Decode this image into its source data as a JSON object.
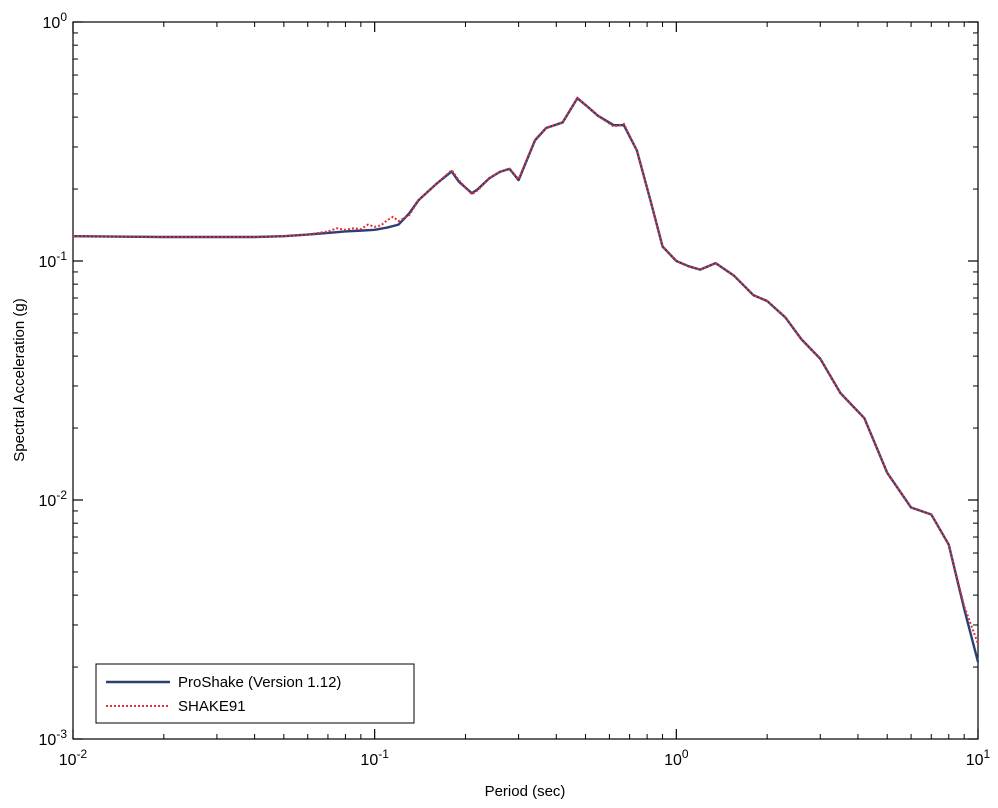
{
  "chart_data": {
    "type": "line",
    "title": "",
    "xlabel": "Period (sec)",
    "ylabel": "Spectral Acceleration (g)",
    "xscale": "log",
    "yscale": "log",
    "xlim": [
      0.01,
      10
    ],
    "ylim": [
      0.001,
      1
    ],
    "grid": false,
    "legend_position": "bottom-left",
    "x_ticks": [
      {
        "base": "10",
        "exp": "-2"
      },
      {
        "base": "10",
        "exp": "-1"
      },
      {
        "base": "10",
        "exp": "0"
      },
      {
        "base": "10",
        "exp": "1"
      }
    ],
    "y_ticks": [
      {
        "base": "10",
        "exp": "-3"
      },
      {
        "base": "10",
        "exp": "-2"
      },
      {
        "base": "10",
        "exp": "-1"
      },
      {
        "base": "10",
        "exp": "0"
      }
    ],
    "series": [
      {
        "name": "ProShake (Version 1.12)",
        "color": "#2b3f73",
        "dash": "solid",
        "x": [
          0.01,
          0.02,
          0.03,
          0.04,
          0.05,
          0.06,
          0.07,
          0.08,
          0.09,
          0.1,
          0.11,
          0.12,
          0.13,
          0.14,
          0.16,
          0.18,
          0.19,
          0.21,
          0.22,
          0.24,
          0.26,
          0.28,
          0.3,
          0.34,
          0.37,
          0.42,
          0.47,
          0.51,
          0.55,
          0.62,
          0.67,
          0.74,
          0.82,
          0.9,
          1.0,
          1.1,
          1.2,
          1.35,
          1.55,
          1.8,
          2.0,
          2.3,
          2.6,
          3.0,
          3.5,
          4.2,
          5.0,
          6.0,
          7.0,
          8.0,
          9.0,
          10.0
        ],
        "y": [
          0.127,
          0.126,
          0.126,
          0.126,
          0.127,
          0.129,
          0.131,
          0.133,
          0.134,
          0.135,
          0.138,
          0.142,
          0.158,
          0.18,
          0.21,
          0.237,
          0.215,
          0.192,
          0.2,
          0.222,
          0.236,
          0.243,
          0.218,
          0.32,
          0.36,
          0.38,
          0.48,
          0.44,
          0.405,
          0.37,
          0.37,
          0.29,
          0.18,
          0.115,
          0.1,
          0.095,
          0.092,
          0.098,
          0.087,
          0.072,
          0.068,
          0.058,
          0.047,
          0.039,
          0.028,
          0.022,
          0.013,
          0.0093,
          0.0087,
          0.0065,
          0.0035,
          0.0021
        ]
      },
      {
        "name": "SHAKE91",
        "color": "#e0303a",
        "dash": "dotted",
        "x": [
          0.01,
          0.02,
          0.03,
          0.04,
          0.05,
          0.06,
          0.07,
          0.075,
          0.08,
          0.085,
          0.09,
          0.095,
          0.1,
          0.105,
          0.11,
          0.115,
          0.12,
          0.13,
          0.14,
          0.16,
          0.18,
          0.19,
          0.21,
          0.22,
          0.24,
          0.26,
          0.28,
          0.3,
          0.34,
          0.37,
          0.42,
          0.47,
          0.51,
          0.55,
          0.62,
          0.67,
          0.74,
          0.82,
          0.9,
          1.0,
          1.1,
          1.2,
          1.35,
          1.55,
          1.8,
          2.0,
          2.3,
          2.6,
          3.0,
          3.5,
          4.2,
          5.0,
          6.0,
          7.0,
          8.0,
          9.0,
          10.0
        ],
        "y": [
          0.127,
          0.126,
          0.126,
          0.126,
          0.127,
          0.129,
          0.133,
          0.137,
          0.135,
          0.137,
          0.136,
          0.142,
          0.139,
          0.141,
          0.148,
          0.153,
          0.147,
          0.155,
          0.18,
          0.21,
          0.24,
          0.218,
          0.19,
          0.198,
          0.222,
          0.236,
          0.243,
          0.22,
          0.322,
          0.36,
          0.38,
          0.482,
          0.44,
          0.405,
          0.365,
          0.375,
          0.29,
          0.18,
          0.115,
          0.1,
          0.095,
          0.092,
          0.098,
          0.087,
          0.072,
          0.068,
          0.058,
          0.047,
          0.039,
          0.028,
          0.022,
          0.013,
          0.0093,
          0.0087,
          0.0065,
          0.0036,
          0.0025
        ]
      }
    ]
  }
}
